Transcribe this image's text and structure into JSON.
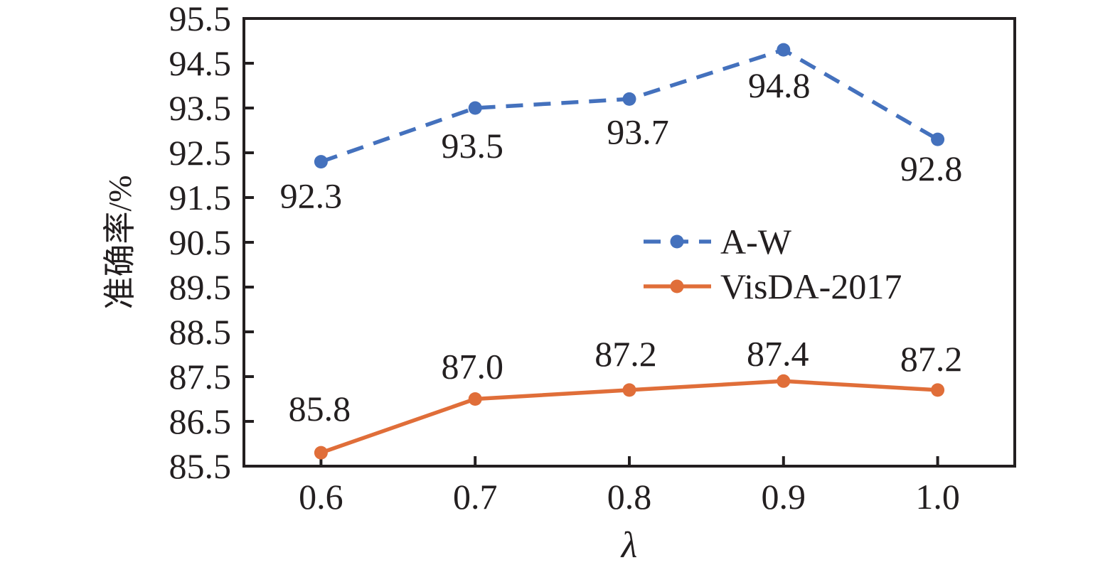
{
  "chart_data": {
    "type": "line",
    "title": "",
    "xlabel": "λ",
    "ylabel": "准确率/%",
    "x": [
      0.6,
      0.7,
      0.8,
      0.9,
      1.0
    ],
    "xticklabels": [
      "0.6",
      "0.7",
      "0.8",
      "0.9",
      "1.0"
    ],
    "yticklabels": [
      "85.5",
      "86.5",
      "87.5",
      "88.5",
      "89.5",
      "90.5",
      "91.5",
      "92.5",
      "93.5",
      "94.5",
      "95.5"
    ],
    "xlim": [
      0.55,
      1.05
    ],
    "ylim": [
      85.5,
      95.5
    ],
    "grid": false,
    "legend_position": "center-right",
    "series": [
      {
        "name": "A-W",
        "color": "#4471bd",
        "line_style": "dashed",
        "marker": "circle",
        "values": [
          92.3,
          93.5,
          93.7,
          94.8,
          92.8
        ],
        "labels": [
          "92.3",
          "93.5",
          "93.7",
          "94.8",
          "92.8"
        ]
      },
      {
        "name": "VisDA-2017",
        "color": "#e06e39",
        "line_style": "solid",
        "marker": "circle",
        "values": [
          85.8,
          87.0,
          87.2,
          87.4,
          87.2
        ],
        "labels": [
          "85.8",
          "87.0",
          "87.2",
          "87.4",
          "87.2"
        ]
      }
    ]
  },
  "colors": {
    "axis": "#231f20",
    "text": "#231f20",
    "background": "#ffffff"
  }
}
